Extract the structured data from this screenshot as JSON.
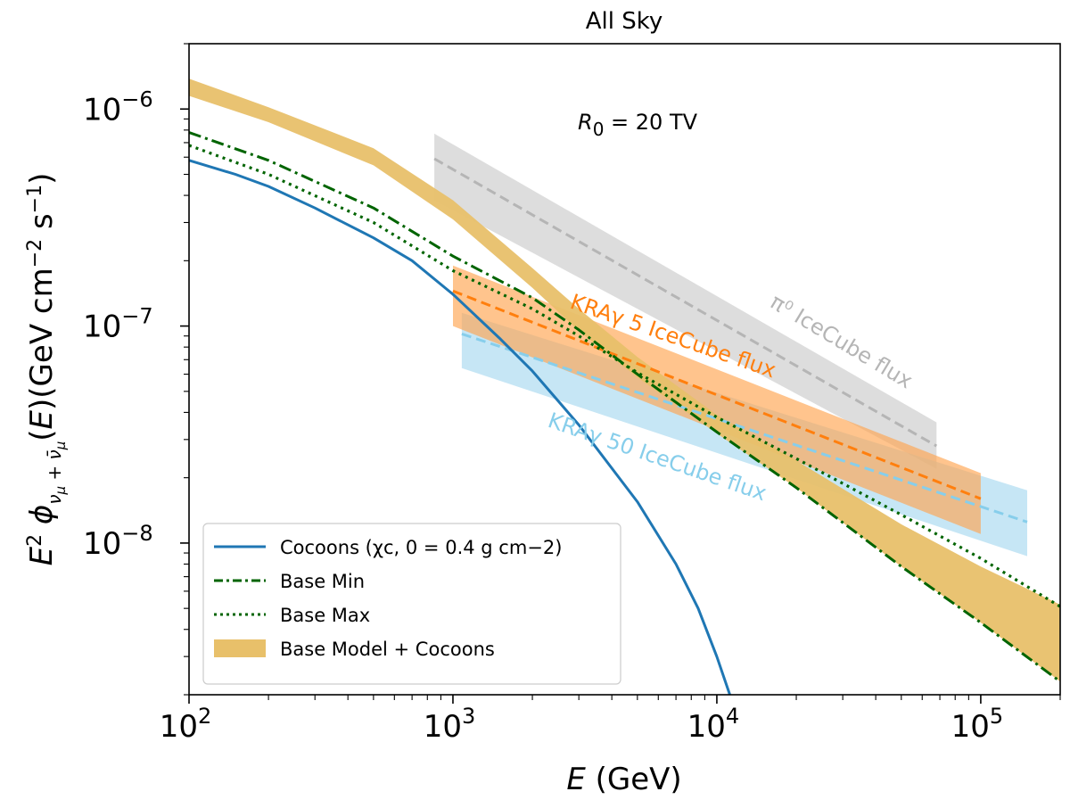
{
  "chart_data": {
    "type": "line",
    "title": "All Sky",
    "annotation": "R_0 = 20 TV",
    "xlabel": "E (GeV)",
    "ylabel": "E^2 φ_{ν_μ+ν̄_μ}(E) (GeV cm^-2 s^-1)",
    "xscale": "log",
    "yscale": "log",
    "xlim": [
      100,
      200000
    ],
    "ylim": [
      2e-09,
      2e-06
    ],
    "xticks": [
      {
        "value": 100,
        "base": "10",
        "exp": "2"
      },
      {
        "value": 1000,
        "base": "10",
        "exp": "3"
      },
      {
        "value": 10000,
        "base": "10",
        "exp": "4"
      },
      {
        "value": 100000,
        "base": "10",
        "exp": "5"
      }
    ],
    "yticks": [
      {
        "value": 1e-06,
        "base": "10",
        "exp": "−6"
      },
      {
        "value": 1e-07,
        "base": "10",
        "exp": "−7"
      },
      {
        "value": 1e-08,
        "base": "10",
        "exp": "−8"
      }
    ],
    "colors": {
      "cocoons": "#1f77b4",
      "base": "#006400",
      "base_model_cocoons": "#e8c06a",
      "kra5": "#ff7f0e",
      "kra5_band": "#ffa550",
      "kra50": "#87ceeb",
      "kra50_band": "#a8d8f0",
      "pi0": "#b5b5b5",
      "pi0_band": "#cfcfcf"
    },
    "bands": [
      {
        "name": "Base Model + Cocoons",
        "x": [
          100,
          200,
          500,
          1000,
          2000,
          3000,
          5000,
          10000,
          20000,
          50000,
          100000,
          200000
        ],
        "low": [
          1.15e-06,
          8.7e-07,
          5.5e-07,
          3.1e-07,
          1.5e-07,
          9.5e-08,
          5.8e-08,
          3.2e-08,
          1.8e-08,
          7.8e-09,
          4.3e-09,
          2.3e-09
        ],
        "high": [
          1.38e-06,
          1.02e-06,
          6.6e-07,
          3.8e-07,
          1.85e-07,
          1.2e-07,
          7.2e-08,
          3.9e-08,
          2.4e-08,
          1.22e-08,
          7.8e-09,
          5.2e-09
        ]
      },
      {
        "name": "π0 IceCube band",
        "x": [
          850,
          68000
        ],
        "low": [
          3.8e-07,
          2.2e-08
        ],
        "high": [
          7.7e-07,
          3.6e-08
        ]
      },
      {
        "name": "KRAγ 5 IceCube band",
        "x": [
          1000,
          100000
        ],
        "low": [
          1e-07,
          1.1e-08
        ],
        "high": [
          1.9e-07,
          2.1e-08
        ]
      },
      {
        "name": "KRAγ 50 IceCube band",
        "x": [
          1080,
          150000
        ],
        "low": [
          6.4e-08,
          8.7e-09
        ],
        "high": [
          1.15e-07,
          1.75e-08
        ]
      }
    ],
    "series": [
      {
        "name": "Cocoons (χ_{c,0} = 0.4 g cm^-2)",
        "style": "solid",
        "x": [
          100,
          150,
          200,
          300,
          500,
          700,
          1000,
          1500,
          2000,
          3000,
          5000,
          7000,
          8500,
          10000,
          11200
        ],
        "y": [
          5.8e-07,
          5e-07,
          4.4e-07,
          3.5e-07,
          2.55e-07,
          2e-07,
          1.4e-07,
          8.8e-08,
          6.2e-08,
          3.5e-08,
          1.55e-08,
          8e-09,
          5e-09,
          3e-09,
          2e-09
        ]
      },
      {
        "name": "Base Min",
        "style": "dashdot",
        "x": [
          100,
          200,
          500,
          1000,
          2000,
          3000,
          5000,
          10000,
          20000,
          50000,
          100000,
          200000
        ],
        "y": [
          7.8e-07,
          5.8e-07,
          3.5e-07,
          2.1e-07,
          1.35e-07,
          9.6e-08,
          6e-08,
          3.25e-08,
          1.8e-08,
          7.8e-09,
          4.3e-09,
          2.3e-09
        ]
      },
      {
        "name": "Base Max",
        "style": "dotted",
        "x": [
          100,
          200,
          500,
          1000,
          2000,
          3000,
          5000,
          10000,
          20000,
          50000,
          100000,
          200000
        ],
        "y": [
          6.8e-07,
          5e-07,
          3e-07,
          1.8e-07,
          1.2e-07,
          9e-08,
          6.1e-08,
          3.8e-08,
          2.45e-08,
          1.35e-08,
          8.5e-09,
          5.1e-09
        ]
      },
      {
        "name": "π0 IceCube flux",
        "style": "dashed",
        "x": [
          850,
          68000
        ],
        "y": [
          5.9e-07,
          2.8e-08
        ]
      },
      {
        "name": "KRAγ 5 IceCube flux",
        "style": "dashed",
        "x": [
          1000,
          100000
        ],
        "y": [
          1.45e-07,
          1.6e-08
        ]
      },
      {
        "name": "KRAγ 50 IceCube flux",
        "style": "dashed",
        "x": [
          1080,
          150000
        ],
        "y": [
          9.2e-08,
          1.25e-08
        ]
      }
    ],
    "labels": {
      "pi0": "π⁰ IceCube flux",
      "kra5": "KRAγ 5 IceCube flux",
      "kra50": "KRAγ 50 IceCube flux"
    },
    "legend": {
      "placement": "lower-left",
      "entries": [
        {
          "label": "Cocoons (χc, 0 = 0.4 g cm−2)",
          "kind": "line",
          "style": "solid"
        },
        {
          "label": "Base Min",
          "kind": "line",
          "style": "dashdot"
        },
        {
          "label": "Base Max",
          "kind": "line",
          "style": "dotted"
        },
        {
          "label": "Base Model + Cocoons",
          "kind": "patch"
        }
      ]
    }
  }
}
